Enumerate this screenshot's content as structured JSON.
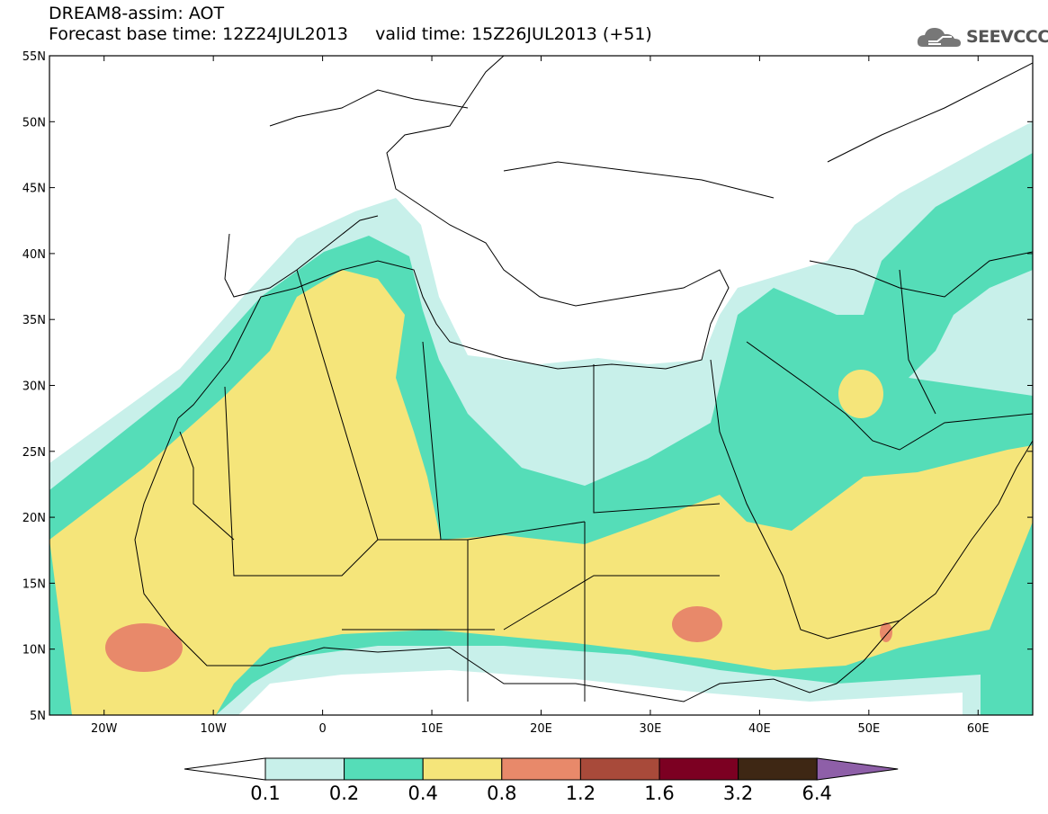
{
  "header": {
    "line1": "DREAM8-assim: AOT",
    "line2": "Forecast base time: 12Z24JUL2013     valid time: 15Z26JUL2013 (+51)"
  },
  "logo": {
    "text": "SEEVCCC",
    "icon": "cloud-icon"
  },
  "map": {
    "lon_range": [
      -25,
      65
    ],
    "lat_range": [
      5,
      55
    ],
    "lat_ticks": [
      "55N",
      "50N",
      "45N",
      "40N",
      "35N",
      "30N",
      "25N",
      "20N",
      "15N",
      "10N",
      "5N"
    ],
    "lon_ticks": [
      "20W",
      "10W",
      "0",
      "10E",
      "20E",
      "30E",
      "40E",
      "50E",
      "60E"
    ]
  },
  "colorbar": {
    "labels": [
      "0.1",
      "0.2",
      "0.4",
      "0.8",
      "1.2",
      "1.6",
      "3.2",
      "6.4"
    ],
    "colors": [
      "#ffffff",
      "#c8f0ea",
      "#55ddb8",
      "#f5e57a",
      "#e8896a",
      "#a84a3a",
      "#7c0022",
      "#3e2714",
      "#8e5fa8"
    ]
  }
}
